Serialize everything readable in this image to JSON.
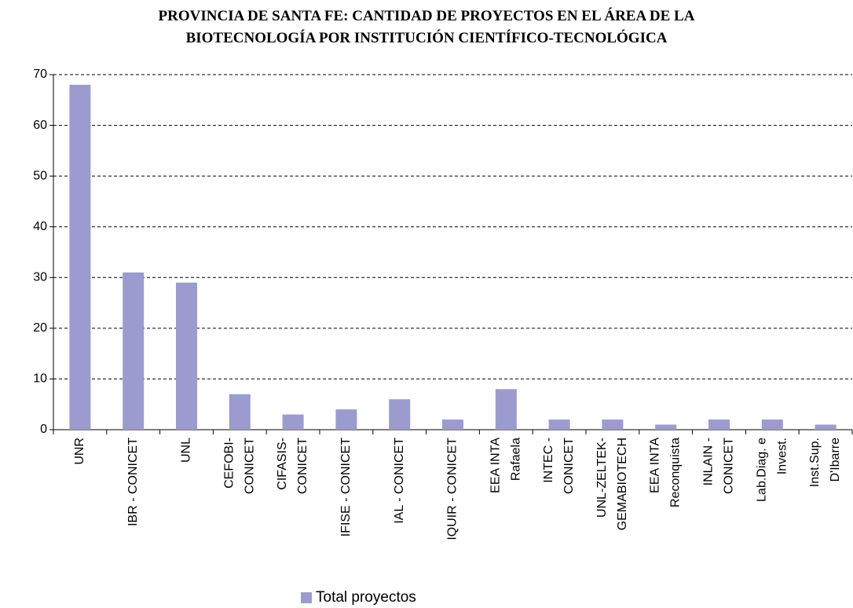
{
  "chart_data": {
    "type": "bar",
    "title": "PROVINCIA DE SANTA FE: CANTIDAD DE PROYECTOS EN EL ÁREA DE LA\nBIOTECNOLOGÍA POR INSTITUCIÓN CIENTÍFICO-TECNOLÓGICA",
    "categories": [
      "UNR",
      "IBR - CONICET",
      "UNL",
      "CEFOBI-\nCONICET",
      "CIFASIS-\nCONICET",
      "IFISE - CONICET",
      "IAL - CONICET",
      "IQUIR - CONICET",
      "EEA INTA\nRafaela",
      "INTEC -\nCONICET",
      "UNL-ZELTEK-\nGEMABIOTECH",
      "EEA INTA\nReconquista",
      "INLAIN -\nCONICET",
      "Lab.Diag. e\nInvest.",
      "Inst.Sup.\nD'Ibarre"
    ],
    "series": [
      {
        "name": "Total proyectos",
        "color": "#9b9bd0",
        "values": [
          68,
          31,
          29,
          7,
          3,
          4,
          6,
          2,
          8,
          2,
          2,
          1,
          2,
          2,
          1
        ]
      }
    ],
    "ylim": [
      0,
      70
    ],
    "yticks": [
      0,
      10,
      20,
      30,
      40,
      50,
      60,
      70
    ],
    "grid": true,
    "legend": "bottom"
  }
}
